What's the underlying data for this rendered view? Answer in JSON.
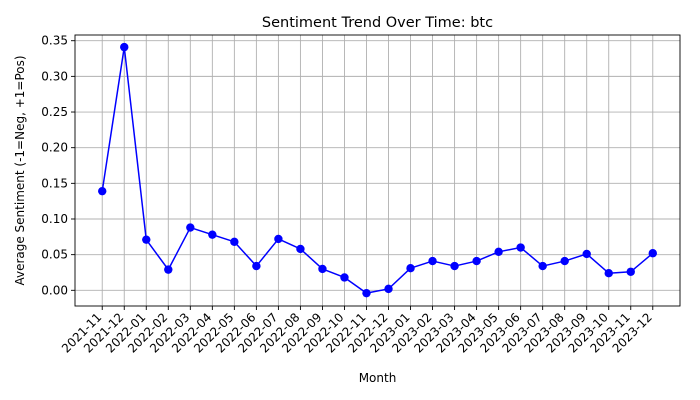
{
  "chart_data": {
    "type": "line",
    "title": "Sentiment Trend Over Time: btc",
    "xlabel": "Month",
    "ylabel": "Average Sentiment (-1=Neg, +1=Pos)",
    "ylim": [
      -0.022,
      0.358
    ],
    "yticks": [
      "0.00",
      "0.05",
      "0.10",
      "0.15",
      "0.20",
      "0.25",
      "0.30",
      "0.35"
    ],
    "grid": true,
    "legend": "none",
    "categories": [
      "2021-11",
      "2021-12",
      "2022-01",
      "2022-02",
      "2022-03",
      "2022-04",
      "2022-05",
      "2022-06",
      "2022-07",
      "2022-08",
      "2022-09",
      "2022-10",
      "2022-11",
      "2022-12",
      "2023-01",
      "2023-02",
      "2023-03",
      "2023-04",
      "2023-05",
      "2023-06",
      "2023-07",
      "2023-08",
      "2023-09",
      "2023-10",
      "2023-11",
      "2023-12"
    ],
    "series": [
      {
        "color": "#0000ff",
        "marker": "circle",
        "values": [
          0.139,
          0.341,
          0.071,
          0.029,
          0.088,
          0.078,
          0.068,
          0.034,
          0.072,
          0.058,
          0.03,
          0.018,
          -0.004,
          0.002,
          0.031,
          0.041,
          0.034,
          0.041,
          0.054,
          0.06,
          0.034,
          0.041,
          0.051,
          0.024,
          0.026,
          0.052
        ]
      }
    ]
  }
}
